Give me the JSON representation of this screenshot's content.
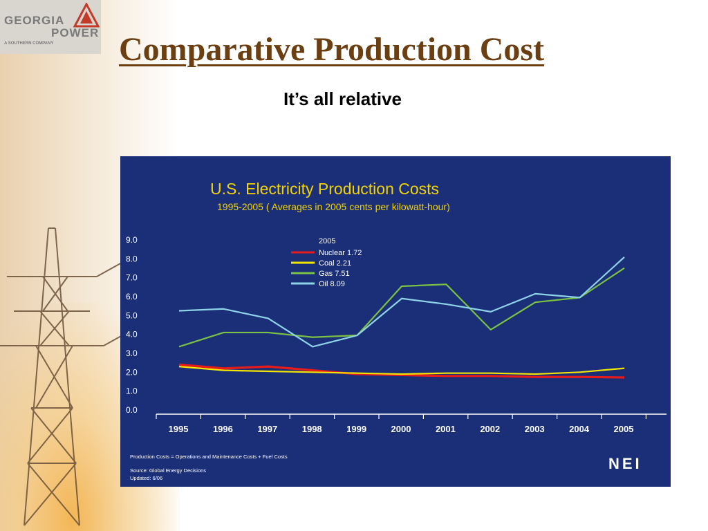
{
  "slide": {
    "title": "Comparative Production Cost",
    "subtitle": "It’s all relative"
  },
  "logo": {
    "line1": "GEORGIA",
    "line2": "POWER",
    "line3": "A SOUTHERN COMPANY"
  },
  "chart_data": {
    "type": "line",
    "title": "U.S. Electricity Production Costs",
    "subtitle": "1995-2005 (  Averages in 2005 cents per kilowatt-hour)",
    "x": [
      "1995",
      "1996",
      "1997",
      "1998",
      "1999",
      "2000",
      "2001",
      "2002",
      "2003",
      "2004",
      "2005"
    ],
    "ylim": [
      0,
      9
    ],
    "yticks": [
      "0.0",
      "1.0",
      "2.0",
      "3.0",
      "4.0",
      "5.0",
      "6.0",
      "7.0",
      "8.0",
      "9.0"
    ],
    "legend_title": "2005",
    "legend_position": "top-left",
    "grid": false,
    "series": [
      {
        "name": "Nuclear 1.72",
        "color": "#e81b1b",
        "values": [
          2.4,
          2.2,
          2.3,
          2.1,
          1.9,
          1.85,
          1.8,
          1.8,
          1.75,
          1.75,
          1.72
        ]
      },
      {
        "name": "Coal 2.21",
        "color": "#f2e600",
        "values": [
          2.3,
          2.1,
          2.05,
          2.0,
          1.95,
          1.9,
          1.95,
          1.95,
          1.9,
          2.0,
          2.21
        ]
      },
      {
        "name": "Gas 7.51",
        "color": "#7cc242",
        "values": [
          3.35,
          4.1,
          4.1,
          3.85,
          3.95,
          6.55,
          6.65,
          4.25,
          5.7,
          5.95,
          7.51
        ]
      },
      {
        "name": "Oil 8.09",
        "color": "#8fd3e8",
        "values": [
          5.25,
          5.35,
          4.85,
          3.35,
          3.95,
          5.9,
          5.6,
          5.2,
          6.15,
          5.95,
          8.09
        ]
      }
    ],
    "footnote1": "Production Costs = Operations and Maintenance Costs + Fuel Costs",
    "footnote2": "Source: Global Energy Decisions",
    "footnote3": "Updated: 6/06",
    "source_logo": "NEI"
  }
}
